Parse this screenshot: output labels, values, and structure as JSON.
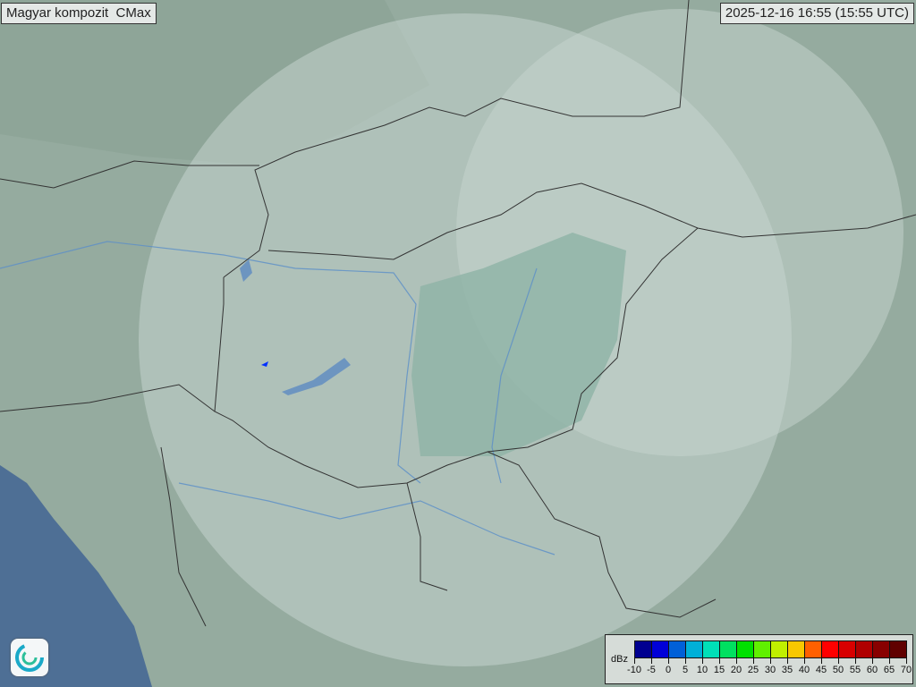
{
  "title": "Magyar kompozit  CMax",
  "timestamp": "2025-12-16 16:55 (15:55 UTC)",
  "legend": {
    "unit": "dBz",
    "labels": [
      "-10",
      "-5",
      "0",
      "5",
      "10",
      "15",
      "20",
      "25",
      "30",
      "35",
      "40",
      "45",
      "50",
      "55",
      "60",
      "65",
      "70"
    ],
    "colors": [
      "#000090",
      "#0000d8",
      "#0060d8",
      "#00b0d8",
      "#00e0b8",
      "#00e060",
      "#00e000",
      "#60f000",
      "#c0f000",
      "#f8c800",
      "#ff6000",
      "#ff0000",
      "#d80000",
      "#b00000",
      "#880000",
      "#600000"
    ]
  },
  "colors": {
    "terrain": "#97aea2",
    "radar_coverage": "#b9cbc3",
    "lowland": "#8fb0a4",
    "border": "#333333",
    "river": "#5b8fc8",
    "sea": "#4e6f95",
    "echo": "#0030ff"
  },
  "logo": {
    "icon": "met-service-swirl-logo"
  }
}
